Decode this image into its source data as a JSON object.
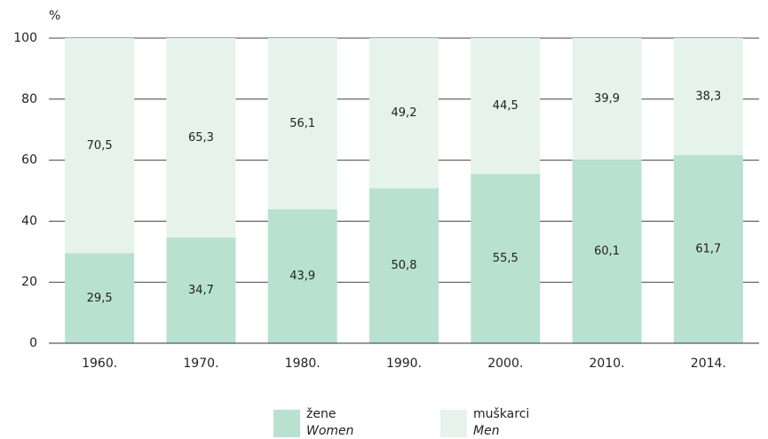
{
  "chart_data": {
    "type": "stacked_bar",
    "y_label": "%",
    "categories": [
      "1960.",
      "1970.",
      "1980.",
      "1990.",
      "2000.",
      "2010.",
      "2014."
    ],
    "series": [
      {
        "name": "žene",
        "name_en": "Women",
        "color": "#b9e1cf",
        "values": [
          29.5,
          34.7,
          43.9,
          50.8,
          55.5,
          60.1,
          61.7
        ],
        "value_labels": [
          "29,5",
          "34,7",
          "43,9",
          "50,8",
          "55,5",
          "60,1",
          "61,7"
        ]
      },
      {
        "name": "muškarci",
        "name_en": "Men",
        "color": "#e5f3ec",
        "values": [
          70.5,
          65.3,
          56.1,
          49.2,
          44.5,
          39.9,
          38.3
        ],
        "value_labels": [
          "70,5",
          "65,3",
          "56,1",
          "49,2",
          "44,5",
          "39,9",
          "38,3"
        ]
      }
    ],
    "ylim": [
      0,
      100
    ],
    "yticks": [
      0,
      20,
      40,
      60,
      80,
      100
    ],
    "grid": true
  }
}
